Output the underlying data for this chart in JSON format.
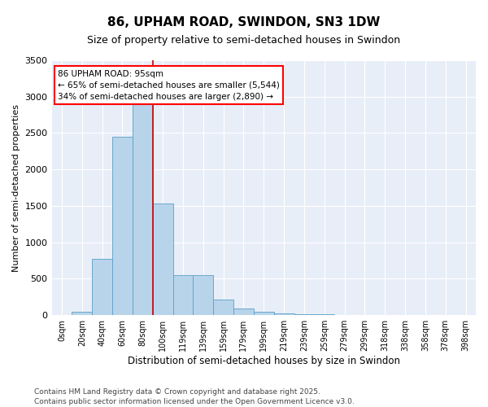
{
  "title": "86, UPHAM ROAD, SWINDON, SN3 1DW",
  "subtitle": "Size of property relative to semi-detached houses in Swindon",
  "xlabel": "Distribution of semi-detached houses by size in Swindon",
  "ylabel": "Number of semi-detached properties",
  "bar_labels": [
    "0sqm",
    "20sqm",
    "40sqm",
    "60sqm",
    "80sqm",
    "100sqm",
    "119sqm",
    "139sqm",
    "159sqm",
    "179sqm",
    "199sqm",
    "219sqm",
    "239sqm",
    "259sqm",
    "279sqm",
    "299sqm",
    "318sqm",
    "338sqm",
    "358sqm",
    "378sqm",
    "398sqm"
  ],
  "bar_heights": [
    5,
    50,
    770,
    2450,
    2900,
    1530,
    550,
    550,
    215,
    90,
    50,
    30,
    15,
    10,
    5,
    5,
    3,
    2,
    1,
    1,
    1
  ],
  "bar_color": "#b8d4ea",
  "bar_edge_color": "#5a9fc8",
  "ylim": [
    0,
    3500
  ],
  "property_label": "86 UPHAM ROAD: 95sqm",
  "annotation_line1": "← 65% of semi-detached houses are smaller (5,544)",
  "annotation_line2": "34% of semi-detached houses are larger (2,890) →",
  "vline_color": "#cc0000",
  "vline_position": 5.0,
  "footer_line1": "Contains HM Land Registry data © Crown copyright and database right 2025.",
  "footer_line2": "Contains public sector information licensed under the Open Government Licence v3.0.",
  "background_color": "#e8eef8",
  "title_fontsize": 11,
  "subtitle_fontsize": 9,
  "tick_fontsize": 7,
  "ylabel_fontsize": 8,
  "xlabel_fontsize": 8.5,
  "annotation_fontsize": 7.5,
  "footer_fontsize": 6.5
}
